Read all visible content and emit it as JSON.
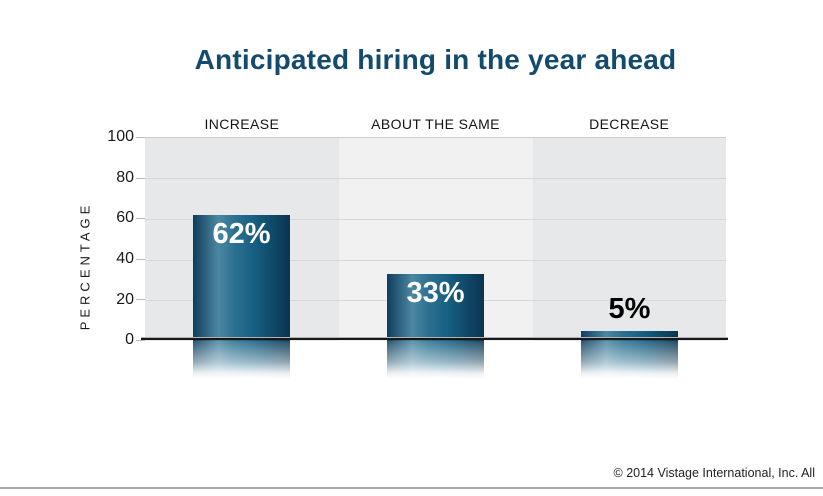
{
  "chart_data": {
    "type": "bar",
    "title": "Anticipated hiring in the year ahead",
    "categories": [
      "INCREASE",
      "ABOUT THE SAME",
      "DECREASE"
    ],
    "values": [
      62,
      33,
      5
    ],
    "value_labels": [
      "62%",
      "33%",
      "5%"
    ],
    "ylabel": "PERCENTAGE",
    "xlabel": "",
    "ylim": [
      0,
      100
    ],
    "yticks": [
      "100",
      "80",
      "60",
      "40",
      "20",
      "0"
    ],
    "grid": "horizontal gridlines every 20, alternating gray column stripes",
    "legend": "none",
    "bar_gradient": [
      "#0f3e5c",
      "#4c87a2",
      "#176083",
      "#0a3450"
    ],
    "title_color": "#134a6e",
    "axis_color": "#181818"
  },
  "footer": {
    "copyright": "© 2014 Vistage International, Inc. All"
  }
}
